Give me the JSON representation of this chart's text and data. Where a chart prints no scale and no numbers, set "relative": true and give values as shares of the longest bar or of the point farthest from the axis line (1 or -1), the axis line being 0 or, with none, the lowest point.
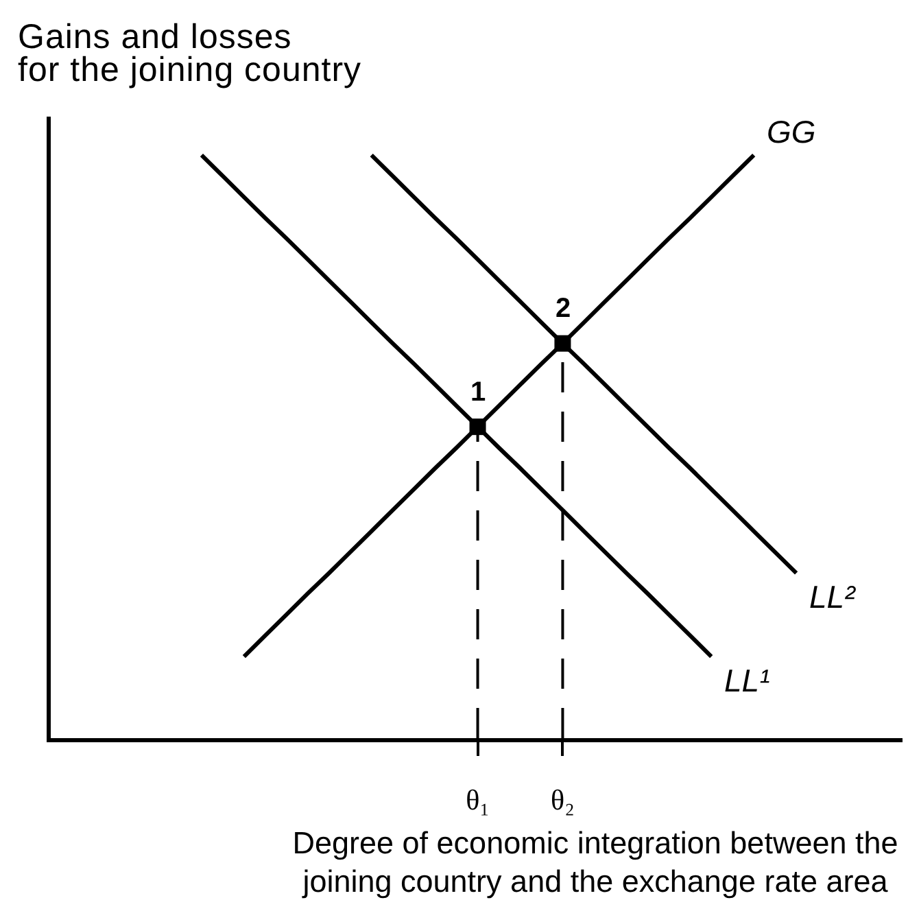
{
  "chart_data": {
    "type": "line",
    "relative": true,
    "xlabel": "Degree of economic integration between the\njoining country and the exchange rate area",
    "ylabel": "Gains and losses\nfor the joining country",
    "categories": [
      null,
      null,
      null,
      null,
      null,
      null,
      null,
      null,
      null,
      null,
      null,
      null,
      null,
      null,
      null,
      null,
      null,
      null,
      null,
      null,
      "θ₁",
      null,
      null,
      null,
      "θ₂",
      null,
      null,
      null,
      null,
      null,
      null,
      null,
      null,
      null,
      null,
      null,
      null,
      null,
      null,
      null,
      null
    ],
    "series": [
      {
        "name": "GG",
        "color": "#000000",
        "values": [
          null,
          null,
          null,
          null,
          null,
          null,
          null,
          null,
          null,
          0.14,
          0.176,
          0.212,
          0.248,
          0.283,
          0.319,
          0.355,
          0.391,
          0.427,
          0.463,
          0.498,
          0.534,
          0.57,
          0.606,
          0.642,
          0.677,
          0.713,
          0.749,
          0.785,
          0.821,
          0.857,
          0.892,
          0.928,
          0.964,
          1.0,
          null,
          null,
          null,
          null,
          null,
          null,
          null
        ]
      },
      {
        "name": "LL¹",
        "color": "#000000",
        "values": [
          null,
          null,
          null,
          null,
          null,
          null,
          null,
          1.0,
          0.964,
          0.928,
          0.892,
          0.857,
          0.821,
          0.785,
          0.749,
          0.713,
          0.677,
          0.642,
          0.606,
          0.57,
          0.534,
          0.498,
          0.463,
          0.427,
          0.391,
          0.355,
          0.319,
          0.283,
          0.248,
          0.212,
          0.176,
          0.14,
          null,
          null,
          null,
          null,
          null,
          null,
          null,
          null,
          null
        ]
      },
      {
        "name": "LL²",
        "color": "#000000",
        "values": [
          null,
          null,
          null,
          null,
          null,
          null,
          null,
          null,
          null,
          null,
          null,
          null,
          null,
          null,
          null,
          1.0,
          0.964,
          0.928,
          0.892,
          0.857,
          0.821,
          0.785,
          0.749,
          0.713,
          0.677,
          0.642,
          0.606,
          0.57,
          0.534,
          0.498,
          0.463,
          0.427,
          0.391,
          0.355,
          0.319,
          0.283,
          null,
          null,
          null,
          null,
          null
        ]
      },
      {
        "type": "lollipop",
        "marker": "square",
        "line_style": "dashed",
        "color": "#000000",
        "values": [
          null,
          null,
          null,
          null,
          null,
          null,
          null,
          null,
          null,
          null,
          null,
          null,
          null,
          null,
          null,
          null,
          null,
          null,
          null,
          null,
          0.534,
          null,
          null,
          null,
          0.677,
          null,
          null,
          null,
          null,
          null,
          null,
          null,
          null,
          null,
          null,
          null,
          null,
          null,
          null,
          null,
          null
        ]
      }
    ],
    "annotations": [
      {
        "text": "1",
        "x": "θ₁",
        "y": 0.534
      },
      {
        "text": "2",
        "x": "θ₂",
        "y": 0.677
      }
    ]
  }
}
